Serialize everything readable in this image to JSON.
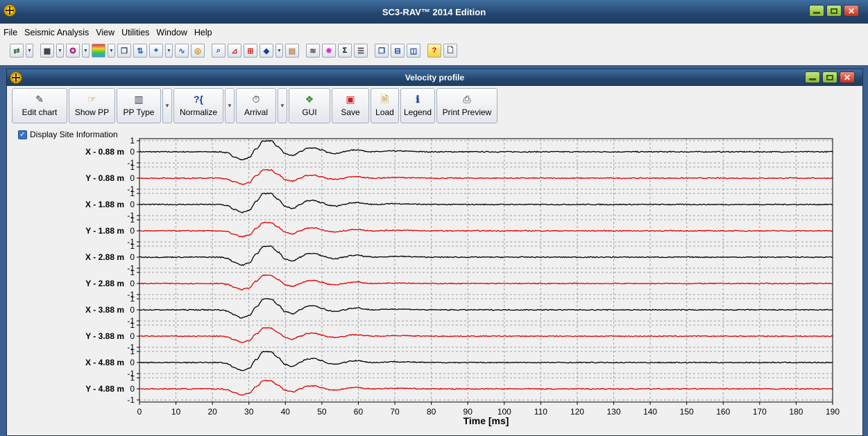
{
  "app": {
    "title": "SC3-RAV™ 2014 Edition",
    "menu": [
      "File",
      "Seismic Analysis",
      "View",
      "Utilities",
      "Window",
      "Help"
    ],
    "toolbar_icons": [
      "import-icon",
      "calculator-icon",
      "rainbow-icon",
      "palette-icon",
      "copy-icon",
      "transfer-icon",
      "zoom-chart-icon",
      "curve-icon",
      "target-icon",
      "search-icon",
      "graph-icon",
      "grid-chart-icon",
      "layers-icon",
      "table-icon",
      "seismic-icon",
      "star-icon",
      "sigma-icon",
      "list-icon",
      "window-cascade-icon",
      "window-horizontal-icon",
      "window-vertical-icon",
      "help-icon",
      "page-icon"
    ]
  },
  "window": {
    "title": "Velocity profile",
    "buttons": [
      {
        "label": "Edit chart",
        "icon": "edit-chart-icon"
      },
      {
        "label": "Show PP",
        "icon": "show-pp-icon"
      },
      {
        "label": "PP Type",
        "icon": "pp-type-icon"
      },
      {
        "label": "Normalize",
        "icon": "normalize-icon"
      },
      {
        "label": "Arrival",
        "icon": "stopwatch-icon"
      },
      {
        "label": "GUI",
        "icon": "gui-icon"
      },
      {
        "label": "Save",
        "icon": "save-icon"
      },
      {
        "label": "Load",
        "icon": "load-icon"
      },
      {
        "label": "Legend",
        "icon": "info-icon"
      },
      {
        "label": "Print Preview",
        "icon": "print-icon"
      }
    ],
    "display_site_info_label": "Display Site Information",
    "display_site_info_checked": true
  },
  "chart_data": {
    "type": "line",
    "xlabel": "Time [ms]",
    "xlim": [
      0,
      190
    ],
    "x_ticks": [
      0,
      10,
      20,
      30,
      40,
      50,
      60,
      70,
      80,
      90,
      100,
      110,
      120,
      130,
      140,
      150,
      160,
      170,
      180,
      190
    ],
    "y_ticks_per_trace": [
      1,
      0,
      -1
    ],
    "grid": true,
    "traces": [
      {
        "label": "X -  0.88 m",
        "color": "#000000"
      },
      {
        "label": "Y -  0.88 m",
        "color": "#e00000"
      },
      {
        "label": "X -  1.88 m",
        "color": "#000000"
      },
      {
        "label": "Y -  1.88 m",
        "color": "#e00000"
      },
      {
        "label": "X -  2.88 m",
        "color": "#000000"
      },
      {
        "label": "Y -  2.88 m",
        "color": "#e00000"
      },
      {
        "label": "X -  3.88 m",
        "color": "#000000"
      },
      {
        "label": "Y -  3.88 m",
        "color": "#e00000"
      },
      {
        "label": "X -  4.88 m",
        "color": "#000000"
      },
      {
        "label": "Y -  4.88 m",
        "color": "#e00000"
      }
    ],
    "waveform": {
      "x": [
        0,
        22,
        24,
        26,
        28,
        30,
        32,
        34,
        36,
        38,
        40,
        42,
        44,
        46,
        48,
        50,
        52,
        54,
        56,
        58,
        60,
        62,
        64,
        70,
        80,
        190
      ],
      "y": [
        0,
        0,
        -0.05,
        -0.25,
        -0.4,
        -0.3,
        0.15,
        0.55,
        0.55,
        0.25,
        -0.1,
        -0.2,
        0.0,
        0.18,
        0.2,
        0.08,
        -0.05,
        -0.08,
        0.0,
        0.08,
        0.1,
        0.03,
        0.0,
        0.04,
        0.0,
        0.0
      ]
    }
  }
}
